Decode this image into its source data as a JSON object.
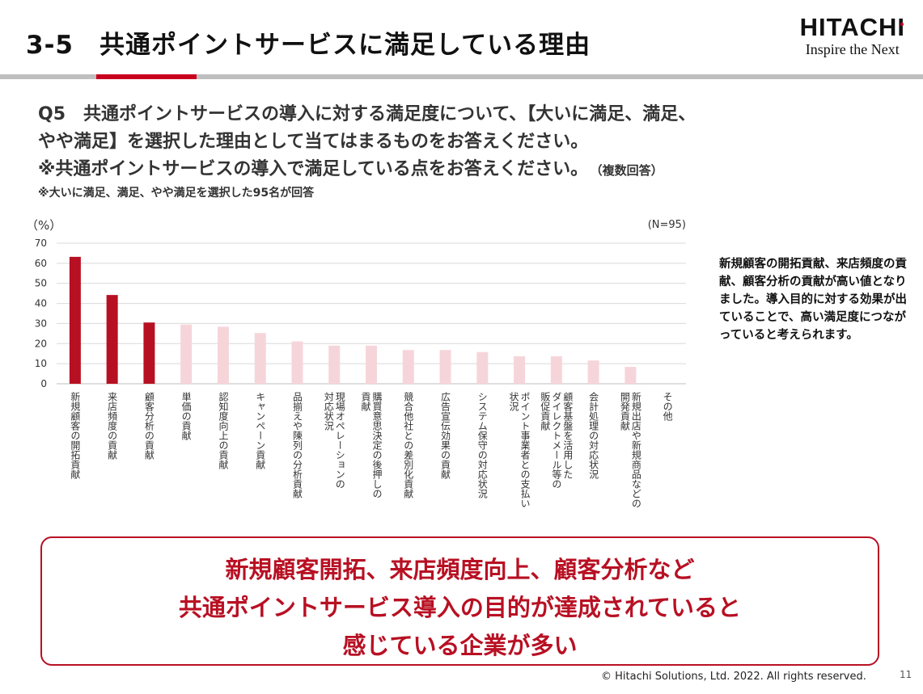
{
  "header": {
    "title": "3-5　共通ポイントサービスに満足している理由",
    "logo_brand": "HITACHI",
    "logo_tagline": "Inspire the Next"
  },
  "question": {
    "line1": "Q5　共通ポイントサービスの導入に対する満足度について、【大いに満足、満足、",
    "line2": "やや満足】を選択した理由として当てはまるものをお答えください。",
    "line3": "※共通ポイントサービスの導入で満足している点をお答えください。",
    "multi": "（複数回答）",
    "sub": "※大いに満足、満足、やや満足を選択した95名が回答"
  },
  "chart_data": {
    "type": "bar",
    "ylabel": "（%）",
    "sample_size": "(N=95)",
    "ylim": [
      0,
      70
    ],
    "yticks": [
      0,
      10,
      20,
      30,
      40,
      50,
      60,
      70
    ],
    "categories": [
      "新規顧客の開拓貢献",
      "来店頻度の貢献",
      "顧客分析の貢献",
      "単価の貢献",
      "認知度向上の貢献",
      "キャンペーン貢献",
      "品揃えや陳列の分析貢献",
      "現場オペレーションの対応状況",
      "購買意思決定の後押しの貢献",
      "競合他社との差別化貢献",
      "広告宣伝効果の貢献",
      "システム保守の対応状況",
      "ポイント事業者との支払い状況",
      "顧客基盤を活用したダイレクトメール等の販促貢献",
      "会計処理の対応状況",
      "新規出店や新規商品などの開発貢献",
      "その他"
    ],
    "label_lines": [
      [
        "新規顧客の開拓貢献"
      ],
      [
        "来店頻度の貢献"
      ],
      [
        "顧客分析の貢献"
      ],
      [
        "単価の貢献"
      ],
      [
        "認知度向上の貢献"
      ],
      [
        "キャンペーン貢献"
      ],
      [
        "品揃えや陳列の分析貢献"
      ],
      [
        "現場オペレーションの",
        "対応状況"
      ],
      [
        "購買意思決定の後押しの",
        "貢献"
      ],
      [
        "競合他社との差別化貢献"
      ],
      [
        "広告宣伝効果の貢献"
      ],
      [
        "システム保守の対応状況"
      ],
      [
        "ポイント事業者との支払い",
        "状況"
      ],
      [
        "顧客基盤を活用した",
        "ダイレクトメール等の",
        "販促貢献"
      ],
      [
        "会計処理の対応状況"
      ],
      [
        "新規出店や新規商品などの",
        "開発貢献"
      ],
      [
        "その他"
      ]
    ],
    "values": [
      63.2,
      44.2,
      30.5,
      29.5,
      28.4,
      25.3,
      21.1,
      19.0,
      19.0,
      16.8,
      16.8,
      15.8,
      13.7,
      13.7,
      11.6,
      8.4,
      0
    ],
    "highlight_count": 3,
    "colors": {
      "highlight": "#b81023",
      "normal": "#f6d5da",
      "grid": "#d9d9d9"
    }
  },
  "note": {
    "text": "新規顧客の開拓貢献、来店頻度の貢献、顧客分析の貢献が高い値となりました。導入目的に対する効果が出ていることで、高い満足度につながっていると考えられます。"
  },
  "conclusion": {
    "line1": "新規顧客開拓、来店頻度向上、顧客分析など",
    "line2": "共通ポイントサービス導入の目的が達成されていると",
    "line3": "感じている企業が多い"
  },
  "footer": {
    "copyright": "© Hitachi Solutions, Ltd. 2022. All rights reserved.",
    "page": "11"
  }
}
